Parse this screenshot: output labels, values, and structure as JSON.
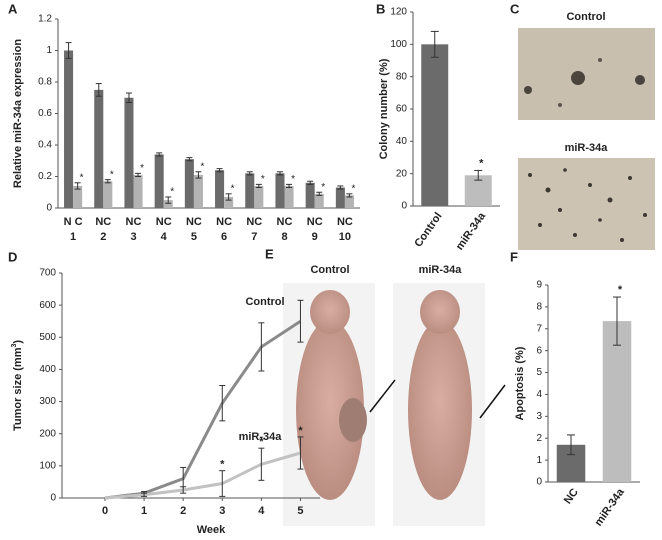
{
  "chart_data": [
    {
      "type": "bar",
      "panel": "A",
      "ylabel": "Relative miR-34a expression",
      "categories": [
        "1",
        "2",
        "3",
        "4",
        "5",
        "6",
        "7",
        "8",
        "9",
        "10"
      ],
      "sublabels": [
        "N C",
        "NC",
        "NC",
        "NC",
        "NC",
        "NC",
        "NC",
        "NC",
        "NC",
        "NC"
      ],
      "series": [
        {
          "color": "#6b6b6b",
          "values": [
            1.0,
            0.75,
            0.7,
            0.34,
            0.31,
            0.24,
            0.22,
            0.22,
            0.16,
            0.13
          ],
          "errors": [
            0.05,
            0.04,
            0.03,
            0.01,
            0.01,
            0.01,
            0.01,
            0.01,
            0.01,
            0.01
          ]
        },
        {
          "color": "#b3b3b3",
          "values": [
            0.14,
            0.17,
            0.21,
            0.05,
            0.21,
            0.07,
            0.14,
            0.14,
            0.09,
            0.08
          ],
          "errors": [
            0.02,
            0.01,
            0.01,
            0.02,
            0.02,
            0.02,
            0.01,
            0.01,
            0.01,
            0.01
          ],
          "significance": [
            "*",
            "*",
            "*",
            "*",
            "*",
            "*",
            "*",
            "*",
            "*",
            "*"
          ]
        }
      ],
      "ylim": [
        0,
        1.2
      ],
      "yticks": [
        0,
        0.2,
        0.4,
        0.6,
        0.8,
        1,
        1.2
      ]
    },
    {
      "type": "bar",
      "panel": "B",
      "ylabel": "Colony number (%)",
      "categories": [
        "Control",
        "miR-34a"
      ],
      "values": [
        100,
        19
      ],
      "errors": [
        8,
        3
      ],
      "colors": [
        "#6b6b6b",
        "#bdbdbd"
      ],
      "significance": [
        null,
        "*"
      ],
      "ylim": [
        0,
        120
      ],
      "yticks": [
        0,
        20,
        40,
        60,
        80,
        100,
        120
      ]
    },
    {
      "type": "line",
      "panel": "D",
      "ylabel": "Tumor size (mm",
      "ylabel_sup": "3",
      "ylabel_end": ")",
      "xlabel": "Week",
      "x": [
        0,
        1,
        2,
        3,
        4,
        5
      ],
      "series": [
        {
          "name": "Control",
          "color": "#8a8a8a",
          "values": [
            0,
            15,
            60,
            295,
            470,
            550
          ],
          "errors": [
            0,
            5,
            35,
            55,
            75,
            65
          ]
        },
        {
          "name": "miR-34a",
          "color": "#c2c2c2",
          "values": [
            0,
            10,
            25,
            45,
            105,
            140
          ],
          "errors": [
            0,
            5,
            10,
            40,
            50,
            50
          ],
          "significance": [
            null,
            null,
            null,
            "*",
            "*",
            "*"
          ]
        }
      ],
      "xlim": [
        -1.1,
        5.5
      ],
      "xticks": [
        0,
        1,
        2,
        3,
        4,
        5
      ],
      "ylim": [
        0,
        700
      ],
      "yticks": [
        0,
        100,
        200,
        300,
        400,
        500,
        600,
        700
      ]
    },
    {
      "type": "bar",
      "panel": "F",
      "ylabel": "Apoptosis (%)",
      "categories": [
        "NC",
        "miR-34a"
      ],
      "values": [
        1.7,
        7.35
      ],
      "errors": [
        0.45,
        1.1
      ],
      "colors": [
        "#6b6b6b",
        "#bdbdbd"
      ],
      "significance": [
        null,
        "*"
      ],
      "ylim": [
        0,
        9
      ],
      "yticks": [
        0,
        1,
        2,
        3,
        4,
        5,
        6,
        7,
        8,
        9
      ]
    }
  ],
  "photos": [
    {
      "panel": "C",
      "labels": [
        "Control",
        "miR-34a"
      ]
    },
    {
      "panel": "E",
      "labels": [
        "Control",
        "miR-34a"
      ]
    }
  ]
}
